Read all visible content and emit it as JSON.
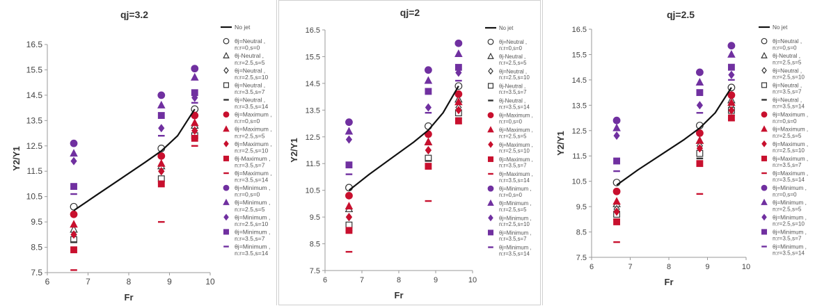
{
  "colors": {
    "neutral": "#333333",
    "maximum": "#c8102e",
    "minimum": "#7030a0",
    "curve": "#111111"
  },
  "chart_data": [
    {
      "type": "scatter",
      "title": "qj=3.2",
      "xlabel": "Fr",
      "ylabel": "Y2/Y1",
      "xlim": [
        6,
        10
      ],
      "ylim": [
        7.5,
        16.5
      ],
      "xticks": [
        "6",
        "7",
        "8",
        "9",
        "10"
      ],
      "yticks": [
        "7.5",
        "8.5",
        "9.5",
        "10.5",
        "11.5",
        "12.5",
        "13.5",
        "14.5",
        "15.5",
        "16.5"
      ],
      "legend_position": "right",
      "line": {
        "name": "No jet",
        "x": [
          6.65,
          7.2,
          7.8,
          8.4,
          8.8,
          9.2,
          9.62
        ],
        "y": [
          9.95,
          10.55,
          11.2,
          11.85,
          12.3,
          12.9,
          13.95
        ]
      },
      "series": [
        {
          "name": "θj=Neutral , n:r=0,s=0",
          "group": "neutral",
          "marker": "circle-open",
          "x": [
            6.65,
            8.8,
            9.62
          ],
          "y": [
            10.1,
            12.4,
            13.95
          ]
        },
        {
          "name": "θj-Neutral , n:r=2.5,s=5",
          "group": "neutral",
          "marker": "triangle-open",
          "x": [
            6.65,
            8.8,
            9.62
          ],
          "y": [
            9.2,
            11.7,
            13.3
          ]
        },
        {
          "name": "θj=Neutral , n:r=2.5,s=10",
          "group": "neutral",
          "marker": "diamond-open",
          "x": [
            6.65,
            8.8,
            9.62
          ],
          "y": [
            9.0,
            11.5,
            13.1
          ]
        },
        {
          "name": "θj=Neutral , n:r=3.5,s=7",
          "group": "neutral",
          "marker": "square-open",
          "x": [
            6.65,
            8.8,
            9.62
          ],
          "y": [
            8.8,
            11.2,
            12.9
          ]
        },
        {
          "name": "θj=Neutral , n:r=3.5,s=14",
          "group": "neutral",
          "marker": "dash",
          "x": [
            6.65,
            8.8,
            9.62
          ],
          "y": [
            8.7,
            11.1,
            12.8
          ]
        },
        {
          "name": "θj=Maximum , n:r=0,s=0",
          "group": "maximum",
          "marker": "circle",
          "x": [
            6.65,
            8.8,
            9.62
          ],
          "y": [
            9.8,
            12.1,
            13.7
          ]
        },
        {
          "name": "θj=Maximum , n:r=2.5,s=5",
          "group": "maximum",
          "marker": "triangle",
          "x": [
            6.65,
            8.8,
            9.62
          ],
          "y": [
            9.4,
            11.8,
            13.4
          ]
        },
        {
          "name": "θj=Maximum , n:r=2.5,s=10",
          "group": "maximum",
          "marker": "diamond",
          "x": [
            6.65,
            8.8,
            9.62
          ],
          "y": [
            9.0,
            11.5,
            13.1
          ]
        },
        {
          "name": "θj-Maximum , n:r=3.5,s=7",
          "group": "maximum",
          "marker": "square",
          "x": [
            6.65,
            8.8,
            9.62
          ],
          "y": [
            8.4,
            11.0,
            12.8
          ]
        },
        {
          "name": "θj=Maximum , n:r=3.5,s=14",
          "group": "maximum",
          "marker": "dash",
          "x": [
            6.65,
            8.8,
            9.62
          ],
          "y": [
            7.6,
            9.5,
            12.5
          ]
        },
        {
          "name": "θj=Minimum , n:r=0,s=0",
          "group": "minimum",
          "marker": "circle",
          "x": [
            6.65,
            8.8,
            9.62
          ],
          "y": [
            12.6,
            14.5,
            15.55
          ]
        },
        {
          "name": "θj=Minimum , n:r=2.5,s=5",
          "group": "minimum",
          "marker": "triangle",
          "x": [
            6.65,
            8.8,
            9.62
          ],
          "y": [
            12.2,
            14.1,
            15.2
          ]
        },
        {
          "name": "θj=Minimum , n:r=2.5,s=10",
          "group": "minimum",
          "marker": "diamond",
          "x": [
            6.65,
            8.8,
            9.62
          ],
          "y": [
            11.9,
            13.2,
            14.4
          ]
        },
        {
          "name": "θj=Minimum , n:r=3.5,s=7",
          "group": "minimum",
          "marker": "square",
          "x": [
            6.65,
            8.8,
            9.62
          ],
          "y": [
            10.9,
            13.7,
            14.6
          ]
        },
        {
          "name": "θj=Minimum , n:r=3.5,s=14",
          "group": "minimum",
          "marker": "dash",
          "x": [
            6.65,
            8.8,
            9.62
          ],
          "y": [
            10.6,
            12.9,
            14.2
          ]
        }
      ]
    },
    {
      "type": "scatter",
      "title": "qj=2",
      "xlabel": "Fr",
      "ylabel": "Y2/Y1",
      "xlim": [
        6,
        10
      ],
      "ylim": [
        7.5,
        16.5
      ],
      "xticks": [
        "6",
        "7",
        "8",
        "9",
        "10"
      ],
      "yticks": [
        "7.5",
        "8.5",
        "9.5",
        "10.5",
        "11.5",
        "12.5",
        "13.5",
        "14.5",
        "15.5",
        "16.5"
      ],
      "legend_position": "right",
      "line": {
        "name": "No jet",
        "x": [
          6.65,
          7.2,
          7.8,
          8.4,
          8.8,
          9.2,
          9.62
        ],
        "y": [
          10.5,
          11.1,
          11.7,
          12.3,
          12.75,
          13.4,
          14.4
        ]
      },
      "series": [
        {
          "name": "θj=Neutral , n:r=0,s=0",
          "group": "neutral",
          "marker": "circle-open",
          "x": [
            6.65,
            8.8,
            9.62
          ],
          "y": [
            10.6,
            12.9,
            14.4
          ]
        },
        {
          "name": "θj-Neutral , n:r=2.5,s=5",
          "group": "neutral",
          "marker": "triangle-open",
          "x": [
            6.65,
            8.8,
            9.62
          ],
          "y": [
            9.8,
            12.3,
            13.9
          ]
        },
        {
          "name": "θj=Neutral , n:r=2.5,s=10",
          "group": "neutral",
          "marker": "diamond-open",
          "x": [
            6.65,
            8.8,
            9.62
          ],
          "y": [
            9.5,
            12.0,
            13.6
          ]
        },
        {
          "name": "θj-Neutral , n:r=3.5,s=7",
          "group": "neutral",
          "marker": "square-open",
          "x": [
            6.65,
            8.8,
            9.62
          ],
          "y": [
            9.2,
            11.7,
            13.4
          ]
        },
        {
          "name": "θj-Neutral , n:r=3.5,s=14",
          "group": "neutral",
          "marker": "dash",
          "x": [
            6.65,
            8.8,
            9.62
          ],
          "y": [
            9.0,
            11.6,
            13.2
          ]
        },
        {
          "name": "θj=Maximum , n:r=0,s=0",
          "group": "maximum",
          "marker": "circle",
          "x": [
            6.65,
            8.8,
            9.62
          ],
          "y": [
            10.3,
            12.6,
            14.1
          ]
        },
        {
          "name": "θj=Maximum , n:r=2.5,s=5",
          "group": "maximum",
          "marker": "triangle",
          "x": [
            6.65,
            8.8,
            9.62
          ],
          "y": [
            9.9,
            12.3,
            13.8
          ]
        },
        {
          "name": "θj=Maximum , n:r=2.5,s=10",
          "group": "maximum",
          "marker": "diamond",
          "x": [
            6.65,
            8.8,
            9.62
          ],
          "y": [
            9.5,
            12.0,
            13.5
          ]
        },
        {
          "name": "θj=Maximum , n:r=3.5,s=7",
          "group": "maximum",
          "marker": "square",
          "x": [
            6.65,
            8.8,
            9.62
          ],
          "y": [
            9.0,
            11.4,
            13.1
          ]
        },
        {
          "name": "θj=Maximum , n:r=3.5,s=14",
          "group": "maximum",
          "marker": "dash",
          "x": [
            6.65,
            8.8,
            9.62
          ],
          "y": [
            8.2,
            10.1,
            13.0
          ]
        },
        {
          "name": "θj=Minimum , n:r=0,s=0",
          "group": "minimum",
          "marker": "circle",
          "x": [
            6.65,
            8.8,
            9.62
          ],
          "y": [
            13.05,
            15.0,
            16.0
          ]
        },
        {
          "name": "θj=Minimum , n:r=2.5,s=5",
          "group": "minimum",
          "marker": "triangle",
          "x": [
            6.65,
            8.8,
            9.62
          ],
          "y": [
            12.7,
            14.6,
            15.6
          ]
        },
        {
          "name": "θj=Minimum , n:r=2.5,s=10",
          "group": "minimum",
          "marker": "diamond",
          "x": [
            6.65,
            8.8,
            9.62
          ],
          "y": [
            12.4,
            13.6,
            14.9
          ]
        },
        {
          "name": "θj=Minimum , n:r=3.5,s=7",
          "group": "minimum",
          "marker": "square",
          "x": [
            6.65,
            8.8,
            9.62
          ],
          "y": [
            11.45,
            14.2,
            15.1
          ]
        },
        {
          "name": "θj=Minimum , n:r=3.5,s=14",
          "group": "minimum",
          "marker": "dash",
          "x": [
            6.65,
            8.8,
            9.62
          ],
          "y": [
            11.1,
            13.4,
            14.6
          ]
        }
      ]
    },
    {
      "type": "scatter",
      "title": "qj=2.5",
      "xlabel": "Fr",
      "ylabel": "Y2/Y1",
      "xlim": [
        6,
        10
      ],
      "ylim": [
        7.5,
        16.5
      ],
      "xticks": [
        "6",
        "7",
        "8",
        "9",
        "10"
      ],
      "yticks": [
        "7.5",
        "8.5",
        "9.5",
        "10.5",
        "11.5",
        "12.5",
        "13.5",
        "14.5",
        "15.5",
        "16.5"
      ],
      "legend_position": "right",
      "line": {
        "name": "No jet",
        "x": [
          6.65,
          7.2,
          7.8,
          8.4,
          8.8,
          9.2,
          9.62
        ],
        "y": [
          10.35,
          10.95,
          11.55,
          12.15,
          12.6,
          13.2,
          14.2
        ]
      },
      "series": [
        {
          "name": "θj=Neutral , n:r=0,s=0",
          "group": "neutral",
          "marker": "circle-open",
          "x": [
            6.65,
            8.8,
            9.62
          ],
          "y": [
            10.45,
            12.7,
            14.2
          ]
        },
        {
          "name": "θj-Neutral , n:r=2.5,s=5",
          "group": "neutral",
          "marker": "triangle-open",
          "x": [
            6.65,
            8.8,
            9.62
          ],
          "y": [
            9.6,
            12.1,
            13.7
          ]
        },
        {
          "name": "θj=Neutral , n:r=2.5,s=10",
          "group": "neutral",
          "marker": "diamond-open",
          "x": [
            6.65,
            8.8,
            9.62
          ],
          "y": [
            9.4,
            11.9,
            13.5
          ]
        },
        {
          "name": "θj=Neutral , n:r=3.5,s=7",
          "group": "neutral",
          "marker": "square-open",
          "x": [
            6.65,
            8.8,
            9.62
          ],
          "y": [
            9.2,
            11.6,
            13.3
          ]
        },
        {
          "name": "θj=Neutral , n:r=3.5,s=14",
          "group": "neutral",
          "marker": "dash",
          "x": [
            6.65,
            8.8,
            9.62
          ],
          "y": [
            9.0,
            11.4,
            13.1
          ]
        },
        {
          "name": "θj=Maximum , n:r=0,s=0",
          "group": "maximum",
          "marker": "circle",
          "x": [
            6.65,
            8.8,
            9.62
          ],
          "y": [
            10.1,
            12.4,
            13.9
          ]
        },
        {
          "name": "θj=Maximum , n:r=2.5,s=5",
          "group": "maximum",
          "marker": "triangle",
          "x": [
            6.65,
            8.8,
            9.62
          ],
          "y": [
            9.7,
            12.1,
            13.6
          ]
        },
        {
          "name": "θj=Maximum , n:r=2.5,s=10",
          "group": "maximum",
          "marker": "diamond",
          "x": [
            6.65,
            8.8,
            9.62
          ],
          "y": [
            9.3,
            11.8,
            13.3
          ]
        },
        {
          "name": "θj=Maximum , n:r=3.5,s=7",
          "group": "maximum",
          "marker": "square",
          "x": [
            6.65,
            8.8,
            9.62
          ],
          "y": [
            8.9,
            11.2,
            13.0
          ]
        },
        {
          "name": "θj=Maximum , n:r=3.5,s=14",
          "group": "maximum",
          "marker": "dash",
          "x": [
            6.65,
            8.8,
            9.62
          ],
          "y": [
            8.1,
            10.0,
            12.9
          ]
        },
        {
          "name": "θj=Minimum , n:r=0,s=0",
          "group": "minimum",
          "marker": "circle",
          "x": [
            6.65,
            8.8,
            9.62
          ],
          "y": [
            12.9,
            14.8,
            15.85
          ]
        },
        {
          "name": "θj=Minimum , n:r=2.5,s=5",
          "group": "minimum",
          "marker": "triangle",
          "x": [
            6.65,
            8.8,
            9.62
          ],
          "y": [
            12.6,
            14.4,
            15.5
          ]
        },
        {
          "name": "θj=Minimum , n:r=2.5,s=10",
          "group": "minimum",
          "marker": "diamond",
          "x": [
            6.65,
            8.8,
            9.62
          ],
          "y": [
            12.3,
            13.5,
            14.7
          ]
        },
        {
          "name": "θj=Minimum , n:r=3.5,s=7",
          "group": "minimum",
          "marker": "square",
          "x": [
            6.65,
            8.8,
            9.62
          ],
          "y": [
            11.3,
            14.0,
            15.0
          ]
        },
        {
          "name": "θj=Minimum , n:r=3.5,s=14",
          "group": "minimum",
          "marker": "dash",
          "x": [
            6.65,
            8.8,
            9.62
          ],
          "y": [
            10.9,
            13.2,
            14.5
          ]
        }
      ]
    }
  ]
}
